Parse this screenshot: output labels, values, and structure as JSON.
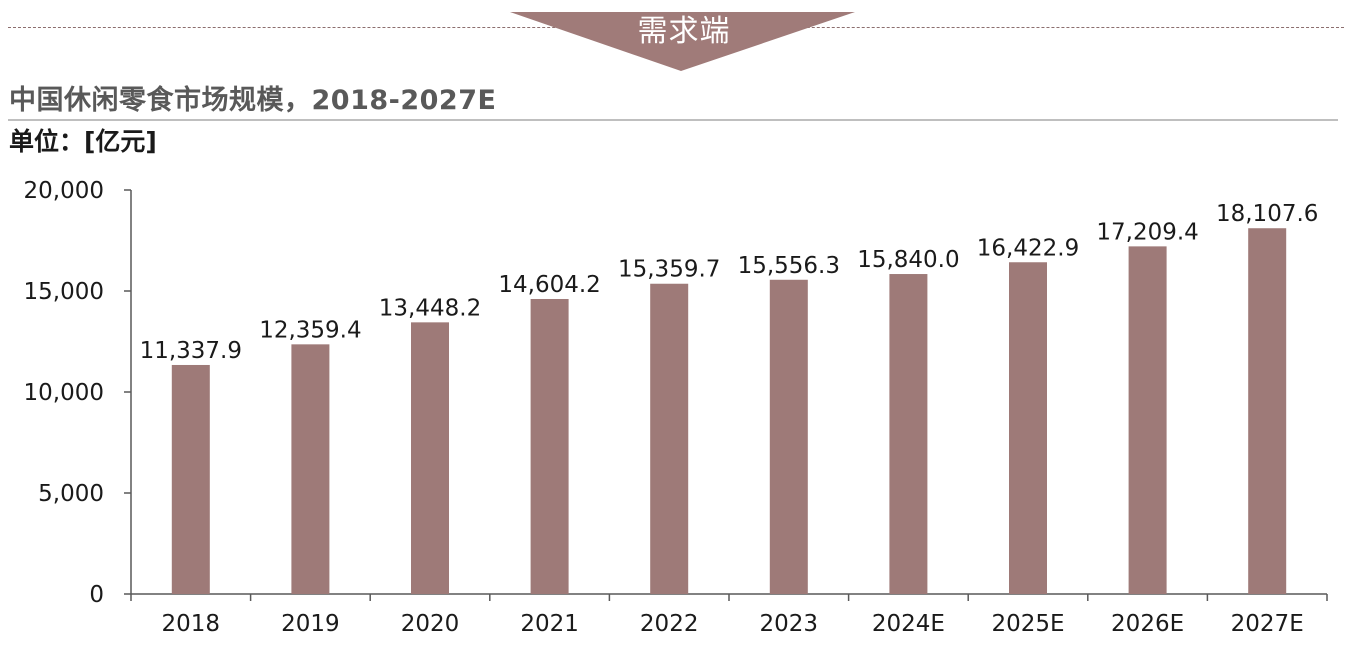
{
  "banner": {
    "label": "需求端"
  },
  "header": {
    "title": "中国休闲零食市场规模，2018-2027E",
    "unit": "单位：[亿元]"
  },
  "colors": {
    "bar": "#9e7a78",
    "banner": "#a07b79",
    "axis": "#595959",
    "text": "#1a1a1a"
  },
  "chart_data": {
    "type": "bar",
    "title": "中国休闲零食市场规模，2018-2027E",
    "categories": [
      "2018",
      "2019",
      "2020",
      "2021",
      "2022",
      "2023",
      "2024E",
      "2025E",
      "2026E",
      "2027E"
    ],
    "values": [
      11337.9,
      12359.4,
      13448.2,
      14604.2,
      15359.7,
      15556.3,
      15840.0,
      16422.9,
      17209.4,
      18107.6
    ],
    "value_labels": [
      "11,337.9",
      "12,359.4",
      "13,448.2",
      "14,604.2",
      "15,359.7",
      "15,556.3",
      "15,840.0",
      "16,422.9",
      "17,209.4",
      "18,107.6"
    ],
    "ylim": [
      0,
      20000
    ],
    "yticks": [
      0,
      5000,
      10000,
      15000,
      20000
    ],
    "ytick_labels": [
      "0",
      "5,000",
      "10,000",
      "15,000",
      "20,000"
    ],
    "xlabel": "",
    "ylabel": "",
    "grid": false,
    "legend": "none"
  }
}
